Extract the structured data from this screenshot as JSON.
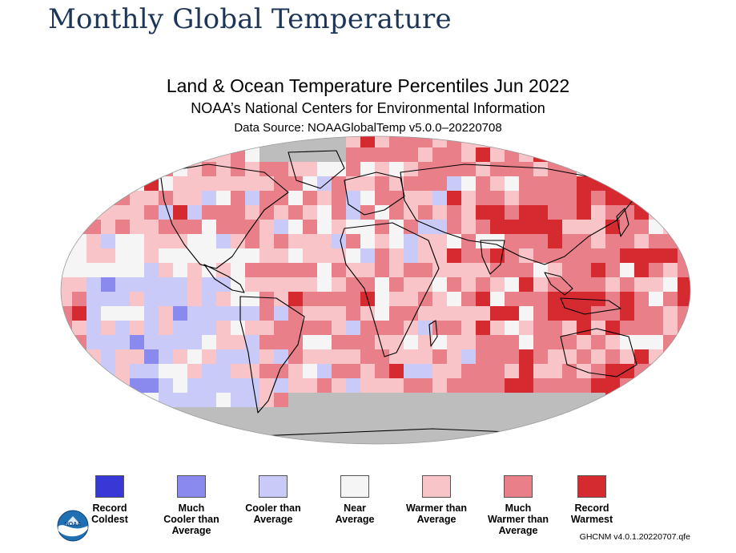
{
  "page": {
    "heading": "Monthly Global Temperature"
  },
  "map": {
    "title": "Land & Ocean Temperature Percentiles Jun 2022",
    "subtitle": "NOAA’s National Centers for Environmental Information",
    "data_source": "Data Source: NOAAGlobalTemp v5.0.0–20220708",
    "projection": "Robinson",
    "colors": {
      "no_data": "#bdbdbd",
      "land_outline": "#000000"
    }
  },
  "legend": {
    "items": [
      {
        "label": "Record Coldest",
        "lines": [
          "Record",
          "Coldest"
        ],
        "color": "#3838d6"
      },
      {
        "label": "Much Cooler than Average",
        "lines": [
          "Much",
          "Cooler than",
          "Average"
        ],
        "color": "#8a8aee"
      },
      {
        "label": "Cooler than Average",
        "lines": [
          "Cooler than",
          "Average"
        ],
        "color": "#cacaf8"
      },
      {
        "label": "Near Average",
        "lines": [
          "Near",
          "Average"
        ],
        "color": "#f5f5f5"
      },
      {
        "label": "Warmer than Average",
        "lines": [
          "Warmer than",
          "Average"
        ],
        "color": "#f8c4c8"
      },
      {
        "label": "Much Warmer than Average",
        "lines": [
          "Much",
          "Warmer than",
          "Average"
        ],
        "color": "#e98089"
      },
      {
        "label": "Record Warmest",
        "lines": [
          "Record",
          "Warmest"
        ],
        "color": "#d42a30"
      }
    ]
  },
  "footer": {
    "version_note": "GHCNM v4.0.1.20220707.qfe",
    "logo_text": "NOAA"
  }
}
